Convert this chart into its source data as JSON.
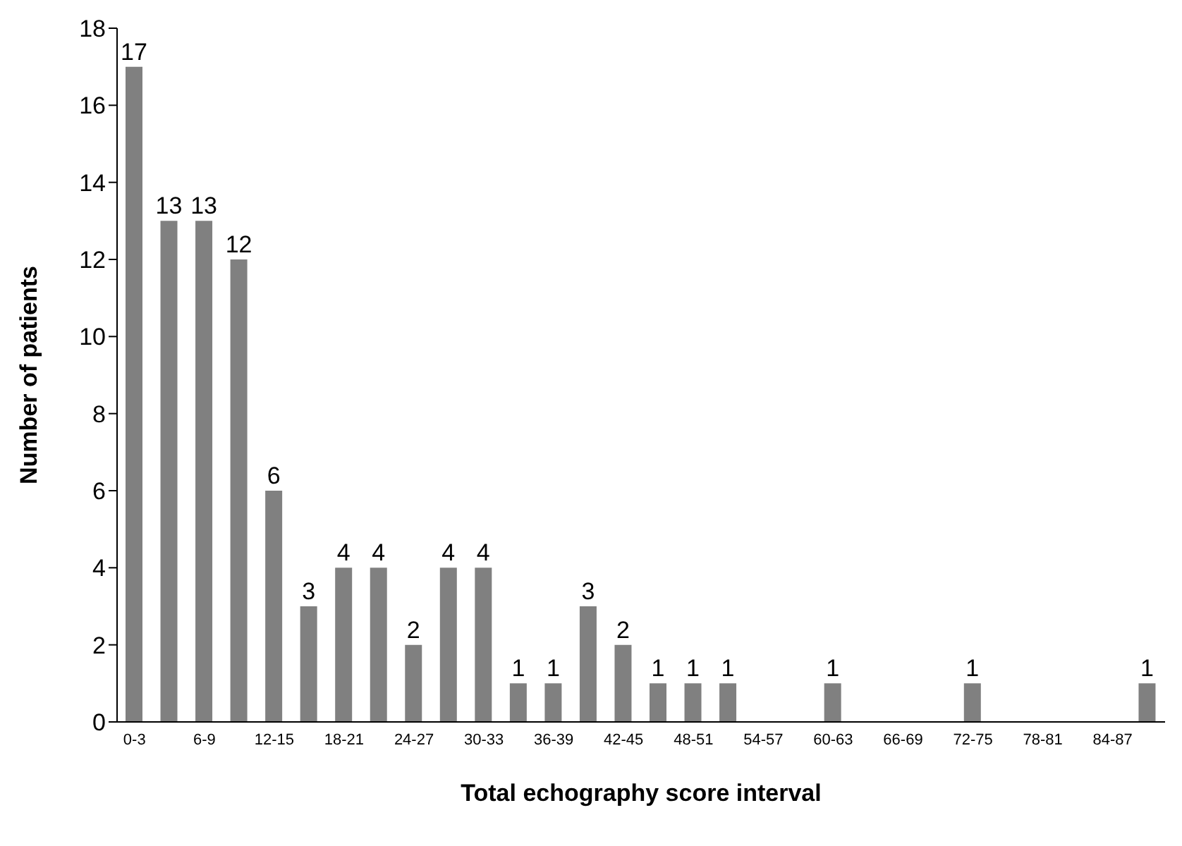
{
  "chart_data": {
    "type": "bar",
    "xlabel": "Total echography score interval",
    "ylabel": "Number of patients",
    "categories": [
      "0-3",
      null,
      "6-9",
      null,
      "12-15",
      null,
      "18-21",
      null,
      "24-27",
      null,
      "30-33",
      null,
      "36-39",
      null,
      "42-45",
      null,
      "48-51",
      null,
      "54-57",
      null,
      "60-63",
      null,
      "66-69",
      null,
      "72-75",
      null,
      "78-81",
      null,
      "84-87",
      null
    ],
    "values": [
      17,
      13,
      13,
      12,
      6,
      3,
      4,
      4,
      2,
      4,
      4,
      1,
      1,
      3,
      2,
      1,
      1,
      1,
      0,
      0,
      1,
      0,
      0,
      0,
      1,
      0,
      0,
      0,
      0,
      1
    ],
    "value_labels": [
      "17",
      "13",
      "13",
      "12",
      "6",
      "3",
      "4",
      "4",
      "2",
      "4",
      "4",
      "1",
      "1",
      "3",
      "2",
      "1",
      "1",
      "1",
      null,
      null,
      "1",
      null,
      null,
      null,
      "1",
      null,
      null,
      null,
      null,
      "1"
    ],
    "color": "#808080",
    "ylim": [
      0,
      18
    ],
    "yticks": [
      0,
      2,
      4,
      6,
      8,
      10,
      12,
      14,
      16,
      18
    ],
    "grid": false,
    "legend": false
  }
}
